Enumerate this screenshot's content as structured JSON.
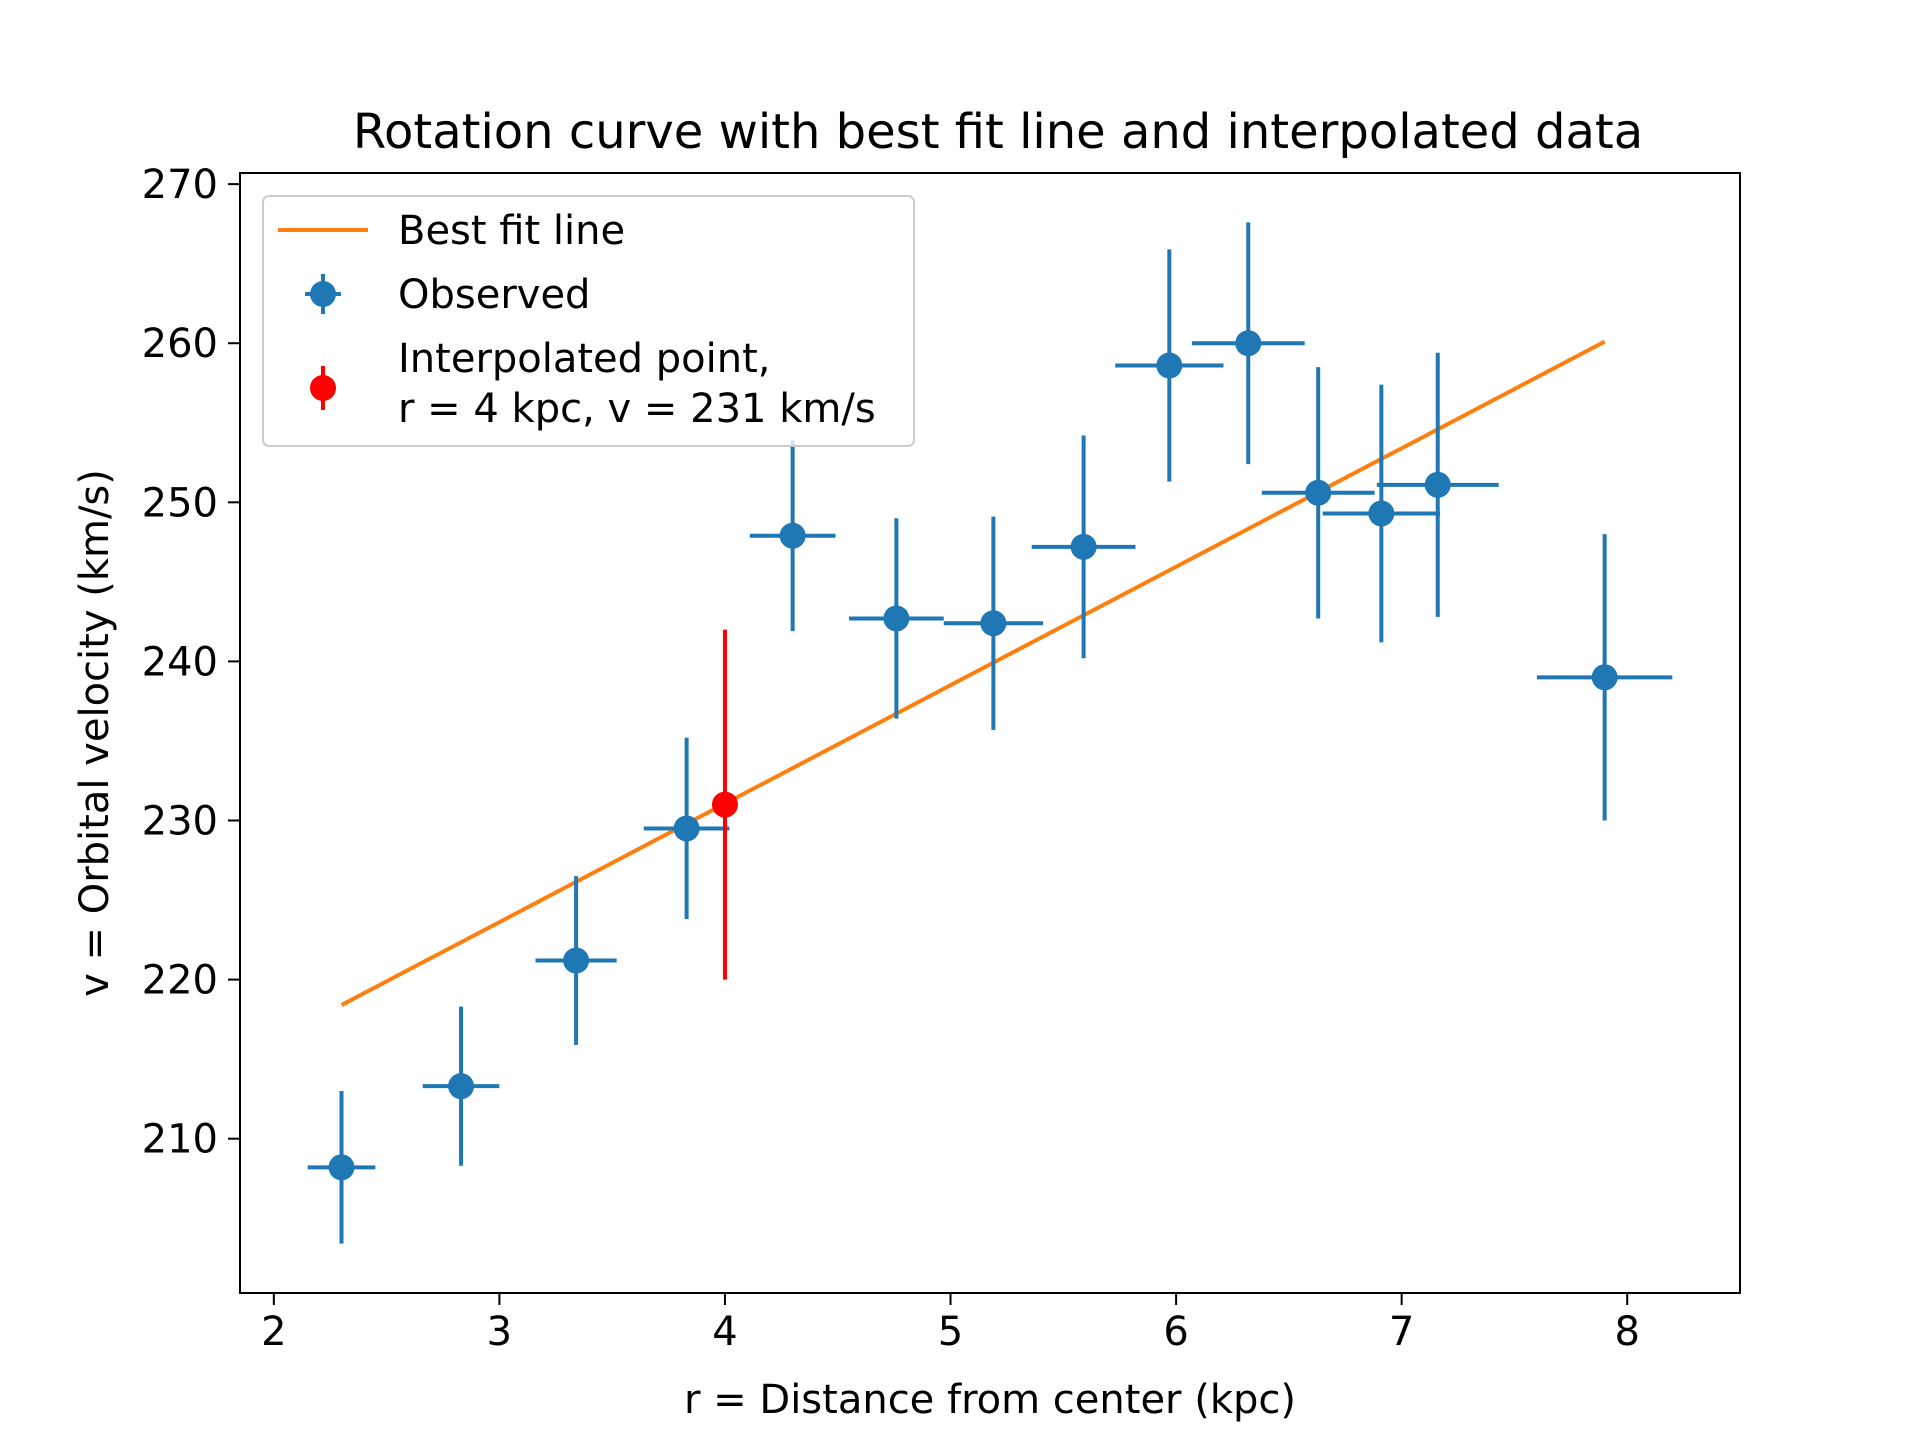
{
  "chart_data": {
    "type": "scatter",
    "title": "Rotation curve with best fit line and interpolated data",
    "xlabel": "r = Distance from center (kpc)",
    "ylabel": "v = Orbital velocity (km/s)",
    "xlim": [
      1.85,
      8.5
    ],
    "ylim": [
      200.3,
      270.7
    ],
    "xticks": [
      2,
      3,
      4,
      5,
      6,
      7,
      8
    ],
    "yticks": [
      210,
      220,
      230,
      240,
      250,
      260,
      270
    ],
    "grid": false,
    "legend_position": "upper-left",
    "series": [
      {
        "name": "Best fit line",
        "kind": "line",
        "color": "#ff7f0e",
        "x": [
          2.3,
          7.9
        ],
        "y": [
          218.4,
          260.1
        ]
      },
      {
        "name": "Observed",
        "kind": "errorbar",
        "color": "#1f77b4",
        "x": [
          2.3,
          2.83,
          3.34,
          3.83,
          4.3,
          4.76,
          5.19,
          5.59,
          5.97,
          6.32,
          6.63,
          6.91,
          7.16,
          7.9
        ],
        "y": [
          208.2,
          213.3,
          221.2,
          229.5,
          247.9,
          242.7,
          242.4,
          247.2,
          258.6,
          260.0,
          250.6,
          249.3,
          251.1,
          239.0
        ],
        "xerr": [
          0.15,
          0.17,
          0.18,
          0.19,
          0.19,
          0.21,
          0.22,
          0.23,
          0.24,
          0.25,
          0.25,
          0.26,
          0.27,
          0.3
        ],
        "yerr": [
          4.8,
          5.0,
          5.3,
          5.7,
          6.0,
          6.3,
          6.7,
          7.0,
          7.3,
          7.6,
          7.9,
          8.1,
          8.3,
          9.0
        ]
      },
      {
        "name": "Interpolated point,\nr = 4 kpc, v = 231 km/s",
        "legend_lines": [
          "Interpolated point,",
          "r = 4 kpc, v = 231 km/s"
        ],
        "kind": "errorbar",
        "color": "#ff0000",
        "x": [
          4.0
        ],
        "y": [
          231.0
        ],
        "yerr": [
          11.0
        ]
      }
    ]
  }
}
